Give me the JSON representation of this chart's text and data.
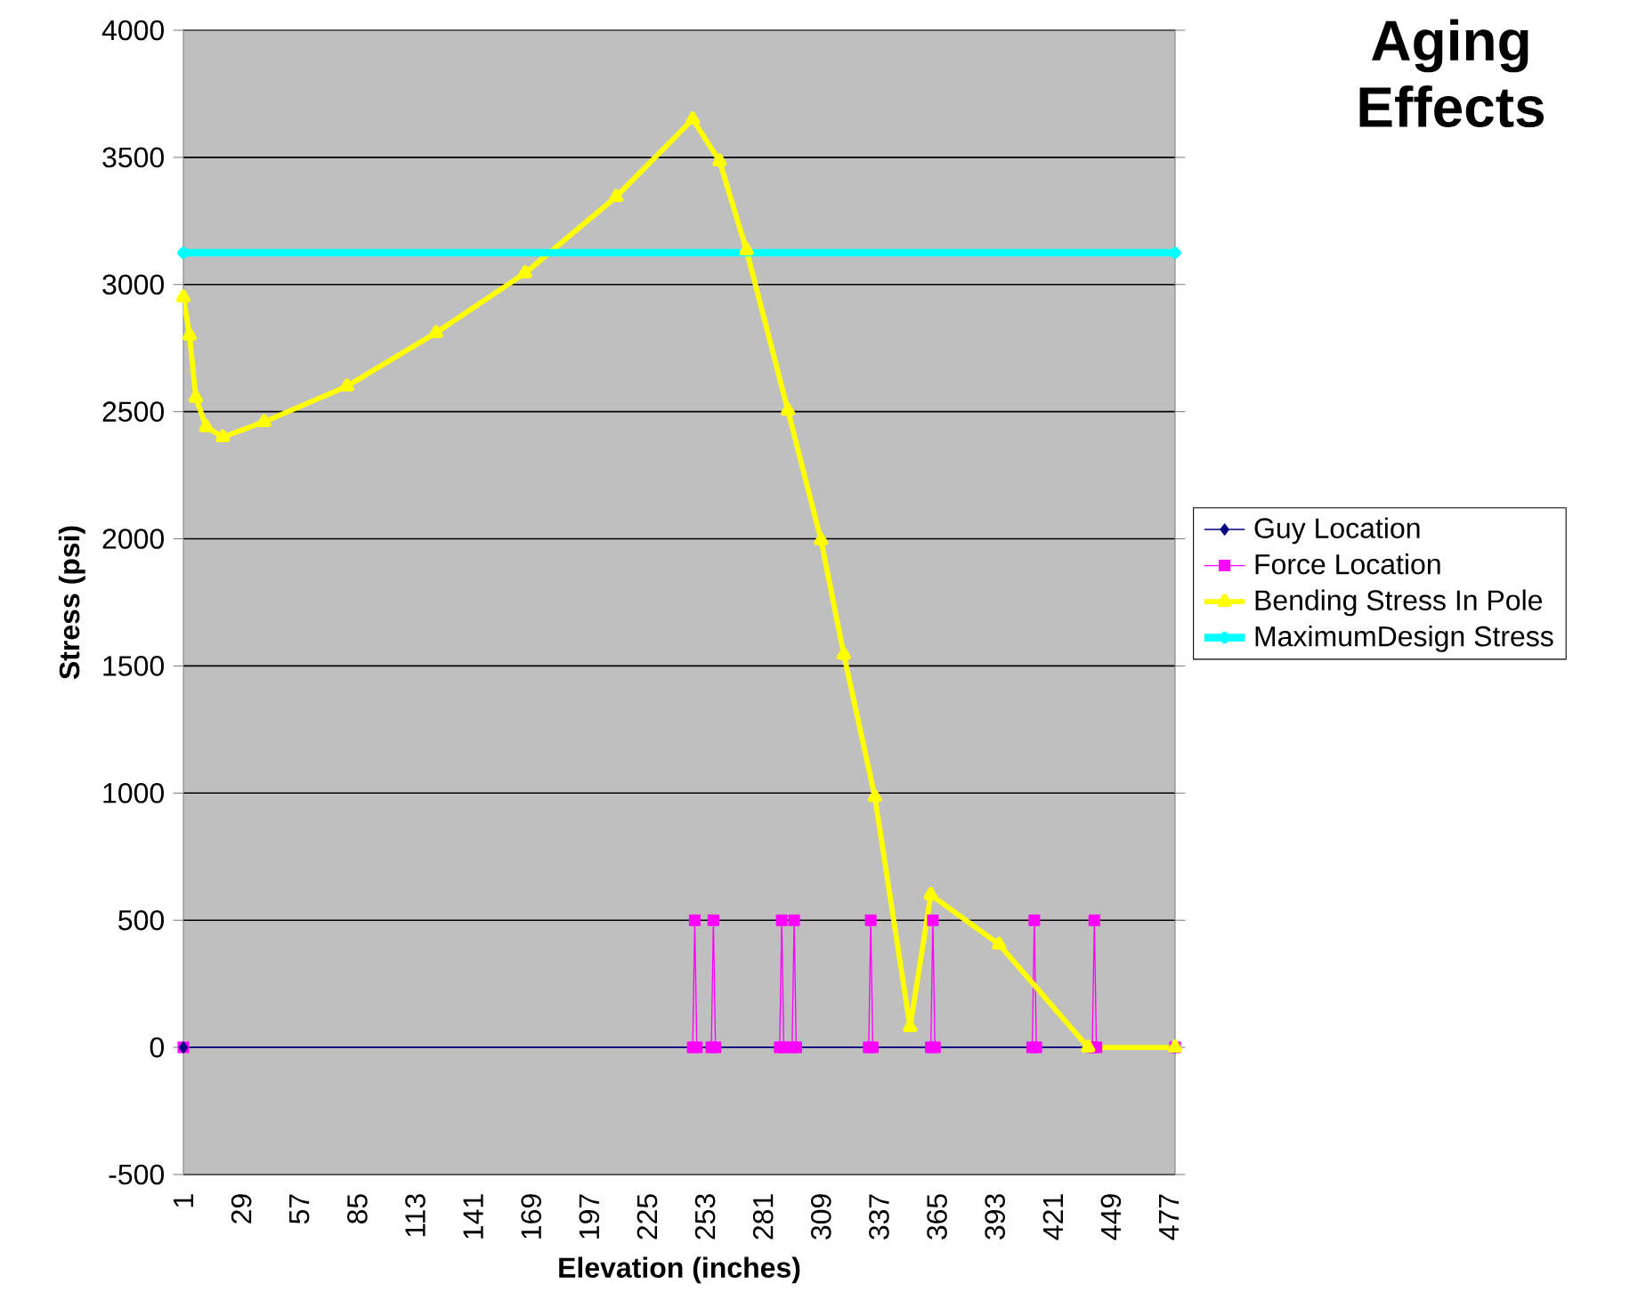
{
  "chart_data": {
    "type": "line",
    "title": "Aging Effects",
    "xlabel": "Elevation (inches)",
    "ylabel": "Stress (psi)",
    "xlim": [
      1,
      480
    ],
    "xticks": [
      1,
      29,
      57,
      85,
      113,
      141,
      169,
      197,
      225,
      253,
      281,
      309,
      337,
      365,
      393,
      421,
      449,
      477
    ],
    "ylim": [
      -500,
      4000
    ],
    "yticks": [
      -500,
      0,
      500,
      1000,
      1500,
      2000,
      2500,
      3000,
      3500,
      4000
    ],
    "grid": "y",
    "legend": "right",
    "series": [
      {
        "name": "Guy Location",
        "color": "#000080",
        "marker": "diamond",
        "x": [
          1,
          480
        ],
        "values": [
          0,
          0
        ]
      },
      {
        "name": "Force Location",
        "color": "#ff00ff",
        "marker": "square",
        "x": [
          1,
          247,
          248,
          249,
          256,
          257,
          258,
          289,
          290,
          291,
          295,
          296,
          297,
          332,
          333,
          334,
          362,
          363,
          364,
          411,
          412,
          413,
          440,
          441,
          442,
          480
        ],
        "values": [
          0,
          0,
          500,
          0,
          0,
          500,
          0,
          0,
          500,
          0,
          0,
          500,
          0,
          0,
          500,
          0,
          0,
          500,
          0,
          0,
          500,
          0,
          0,
          500,
          0,
          0
        ]
      },
      {
        "name": "Bending Stress In Pole",
        "color": "#ffff00",
        "marker": "triangle",
        "x": [
          1,
          4,
          7,
          12,
          20,
          40,
          80,
          123,
          166,
          210,
          247,
          260,
          273,
          293,
          309,
          320,
          335,
          352,
          362,
          395,
          438,
          480
        ],
        "values": [
          2950,
          2800,
          2555,
          2440,
          2400,
          2460,
          2600,
          2810,
          3045,
          3345,
          3650,
          3485,
          3135,
          2505,
          1995,
          1545,
          985,
          80,
          600,
          405,
          0,
          0
        ]
      },
      {
        "name": "MaximumDesign Stress",
        "color": "#00ffff",
        "marker": "cross",
        "x": [
          1,
          480
        ],
        "values": [
          3125,
          3125
        ]
      }
    ]
  }
}
